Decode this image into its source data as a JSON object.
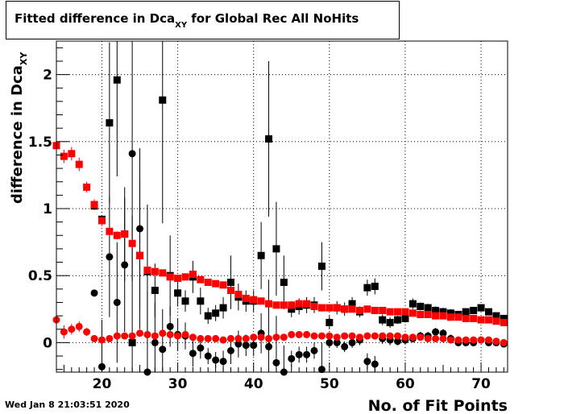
{
  "title": {
    "main": "Fitted difference in Dca",
    "sub": "XY",
    "suffix": " for Global Rec All NoHits"
  },
  "footer": {
    "date": "Wed Jan  8 21:03:51 2020"
  },
  "chart_data": {
    "type": "scatter",
    "title": "Fitted difference in DcaXY for Global Rec All NoHits",
    "xlabel": "No. of Fit Points",
    "ylabel": "difference in DcaXY",
    "xlim": [
      14,
      73.5
    ],
    "ylim": [
      -0.22,
      2.25
    ],
    "xticks": [
      20,
      30,
      40,
      50,
      60,
      70
    ],
    "yticks": [
      0,
      0.5,
      1,
      1.5,
      2
    ],
    "ytick_labels": [
      "0",
      "0.5",
      "1",
      "1.5",
      "2"
    ],
    "grid": true,
    "colors": {
      "black": "#000000",
      "red": "#ff0000"
    },
    "series": [
      {
        "color": "#000000",
        "marker": "square",
        "x": [
          19,
          20,
          21,
          22,
          23,
          24,
          25,
          26,
          27,
          28,
          29,
          30,
          31,
          32,
          33,
          34,
          35,
          36,
          37,
          38,
          39,
          40,
          41,
          42,
          43,
          44,
          45,
          46,
          47,
          48,
          49,
          50,
          51,
          52,
          53,
          54,
          55,
          56,
          57,
          58,
          59,
          60,
          61,
          62,
          63,
          64,
          65,
          66,
          67,
          68,
          69,
          70,
          71,
          72,
          73
        ],
        "y": [
          1.02,
          0.92,
          1.64,
          1.96,
          0.81,
          0.0,
          0.65,
          0.53,
          0.39,
          1.81,
          0.5,
          0.37,
          0.31,
          0.49,
          0.31,
          0.2,
          0.22,
          0.26,
          0.45,
          0.34,
          0.31,
          0.31,
          0.65,
          1.52,
          0.7,
          0.45,
          0.25,
          0.27,
          0.28,
          0.28,
          0.57,
          0.15,
          0.26,
          0.25,
          0.29,
          0.23,
          0.41,
          0.42,
          0.17,
          0.15,
          0.17,
          0.18,
          0.29,
          0.27,
          0.26,
          0.24,
          0.23,
          0.22,
          0.21,
          0.23,
          0.24,
          0.26,
          0.23,
          0.2,
          0.18
        ],
        "err": [
          0.0,
          0.0,
          0.6,
          0.72,
          0.35,
          0.95,
          0.55,
          0.5,
          0.2,
          0.92,
          0.3,
          0.1,
          0.08,
          0.12,
          0.1,
          0.06,
          0.06,
          0.08,
          0.2,
          0.1,
          0.08,
          0.08,
          0.25,
          0.58,
          0.35,
          0.2,
          0.06,
          0.06,
          0.06,
          0.06,
          0.18,
          0.05,
          0.05,
          0.05,
          0.05,
          0.04,
          0.06,
          0.06,
          0.04,
          0.04,
          0.03,
          0.03,
          0.04,
          0.03,
          0.03,
          0.03,
          0.03,
          0.03,
          0.02,
          0.02,
          0.02,
          0.02,
          0.02,
          0.02,
          0.02
        ]
      },
      {
        "color": "#000000",
        "marker": "circle",
        "x": [
          19,
          20,
          21,
          22,
          23,
          24,
          25,
          26,
          27,
          28,
          29,
          30,
          31,
          32,
          33,
          34,
          35,
          36,
          37,
          38,
          39,
          40,
          41,
          42,
          43,
          44,
          45,
          46,
          47,
          48,
          49,
          50,
          51,
          52,
          53,
          54,
          55,
          56,
          57,
          58,
          59,
          60,
          61,
          62,
          63,
          64,
          65,
          66,
          67,
          68,
          69,
          70,
          71,
          72,
          73
        ],
        "y": [
          0.37,
          -0.18,
          0.64,
          0.3,
          0.58,
          1.41,
          0.85,
          -0.22,
          0.0,
          -0.05,
          0.12,
          0.06,
          0.05,
          -0.08,
          -0.04,
          -0.1,
          -0.13,
          -0.14,
          -0.06,
          -0.01,
          -0.02,
          -0.02,
          0.07,
          -0.03,
          -0.15,
          -0.22,
          -0.12,
          -0.09,
          -0.09,
          -0.06,
          -0.2,
          0.0,
          0.0,
          -0.03,
          0.0,
          0.02,
          -0.14,
          -0.16,
          0.03,
          0.02,
          0.01,
          0.02,
          0.03,
          0.05,
          0.05,
          0.08,
          0.07,
          0.03,
          0.0,
          0.0,
          0.0,
          0.02,
          0.0,
          0.0,
          -0.01
        ],
        "err": [
          0.0,
          0.35,
          0.45,
          0.45,
          0.5,
          0.95,
          0.6,
          0.6,
          0.3,
          0.3,
          0.15,
          0.12,
          0.1,
          0.1,
          0.08,
          0.06,
          0.06,
          0.08,
          0.1,
          0.1,
          0.08,
          0.08,
          0.15,
          0.5,
          0.35,
          0.2,
          0.06,
          0.06,
          0.06,
          0.06,
          0.2,
          0.04,
          0.04,
          0.04,
          0.04,
          0.04,
          0.06,
          0.06,
          0.04,
          0.04,
          0.03,
          0.03,
          0.03,
          0.03,
          0.03,
          0.03,
          0.03,
          0.03,
          0.02,
          0.02,
          0.02,
          0.02,
          0.02,
          0.02,
          0.02
        ]
      },
      {
        "color": "#ff0000",
        "marker": "square",
        "x": [
          14,
          15,
          16,
          17,
          18,
          19,
          20,
          21,
          22,
          23,
          24,
          25,
          26,
          27,
          28,
          29,
          30,
          31,
          32,
          33,
          34,
          35,
          36,
          37,
          38,
          39,
          40,
          41,
          42,
          43,
          44,
          45,
          46,
          47,
          48,
          49,
          50,
          51,
          52,
          53,
          54,
          55,
          56,
          57,
          58,
          59,
          60,
          61,
          62,
          63,
          64,
          65,
          66,
          67,
          68,
          69,
          70,
          71,
          72,
          73
        ],
        "y": [
          1.47,
          1.39,
          1.41,
          1.33,
          1.16,
          1.03,
          0.91,
          0.83,
          0.8,
          0.81,
          0.74,
          0.65,
          0.54,
          0.53,
          0.52,
          0.49,
          0.48,
          0.49,
          0.51,
          0.47,
          0.45,
          0.44,
          0.43,
          0.39,
          0.36,
          0.33,
          0.32,
          0.31,
          0.29,
          0.28,
          0.28,
          0.28,
          0.29,
          0.29,
          0.27,
          0.26,
          0.26,
          0.26,
          0.25,
          0.25,
          0.24,
          0.25,
          0.24,
          0.24,
          0.23,
          0.23,
          0.23,
          0.22,
          0.21,
          0.21,
          0.2,
          0.2,
          0.19,
          0.19,
          0.18,
          0.18,
          0.17,
          0.17,
          0.16,
          0.15
        ],
        "err": [
          0.1,
          0.05,
          0.05,
          0.05,
          0.04,
          0.04,
          0.04,
          0.03,
          0.03,
          0.03,
          0.03,
          0.02,
          0.02,
          0.02,
          0.02,
          0.02,
          0.02,
          0.02,
          0.02,
          0.02,
          0.02,
          0.02,
          0.01,
          0.01,
          0.01,
          0.01,
          0.01,
          0.01,
          0.01,
          0.01,
          0.01,
          0.01,
          0.01,
          0.01,
          0.01,
          0.01,
          0.01,
          0.01,
          0.01,
          0.01,
          0.01,
          0.01,
          0.01,
          0.01,
          0.01,
          0.01,
          0.01,
          0.01,
          0.01,
          0.01,
          0.01,
          0.01,
          0.01,
          0.01,
          0.01,
          0.01,
          0.01,
          0.01,
          0.01,
          0.01
        ]
      },
      {
        "color": "#ff0000",
        "marker": "circle",
        "x": [
          14,
          15,
          16,
          17,
          18,
          19,
          20,
          21,
          22,
          23,
          24,
          25,
          26,
          27,
          28,
          29,
          30,
          31,
          32,
          33,
          34,
          35,
          36,
          37,
          38,
          39,
          40,
          41,
          42,
          43,
          44,
          45,
          46,
          47,
          48,
          49,
          50,
          51,
          52,
          53,
          54,
          55,
          56,
          57,
          58,
          59,
          60,
          61,
          62,
          63,
          64,
          65,
          66,
          67,
          68,
          69,
          70,
          71,
          72,
          73
        ],
        "y": [
          0.17,
          0.08,
          0.1,
          0.12,
          0.08,
          0.03,
          0.02,
          0.03,
          0.05,
          0.05,
          0.05,
          0.07,
          0.06,
          0.05,
          0.07,
          0.06,
          0.05,
          0.06,
          0.04,
          0.03,
          0.03,
          0.03,
          0.02,
          0.03,
          0.03,
          0.03,
          0.04,
          0.04,
          0.03,
          0.04,
          0.04,
          0.06,
          0.06,
          0.06,
          0.05,
          0.05,
          0.05,
          0.04,
          0.05,
          0.05,
          0.04,
          0.05,
          0.05,
          0.05,
          0.05,
          0.05,
          0.04,
          0.04,
          0.04,
          0.03,
          0.03,
          0.03,
          0.02,
          0.02,
          0.02,
          0.02,
          0.02,
          0.02,
          0.01,
          0.0
        ],
        "err": [
          0.08,
          0.05,
          0.04,
          0.04,
          0.03,
          0.02,
          0.02,
          0.02,
          0.02,
          0.02,
          0.02,
          0.01,
          0.01,
          0.01,
          0.01,
          0.01,
          0.01,
          0.01,
          0.01,
          0.01,
          0.01,
          0.01,
          0.01,
          0.01,
          0.01,
          0.01,
          0.01,
          0.01,
          0.01,
          0.01,
          0.01,
          0.01,
          0.01,
          0.01,
          0.01,
          0.01,
          0.01,
          0.01,
          0.01,
          0.01,
          0.01,
          0.01,
          0.01,
          0.01,
          0.01,
          0.01,
          0.01,
          0.01,
          0.01,
          0.01,
          0.01,
          0.01,
          0.01,
          0.01,
          0.01,
          0.01,
          0.01,
          0.01,
          0.01,
          0.01
        ]
      }
    ]
  }
}
